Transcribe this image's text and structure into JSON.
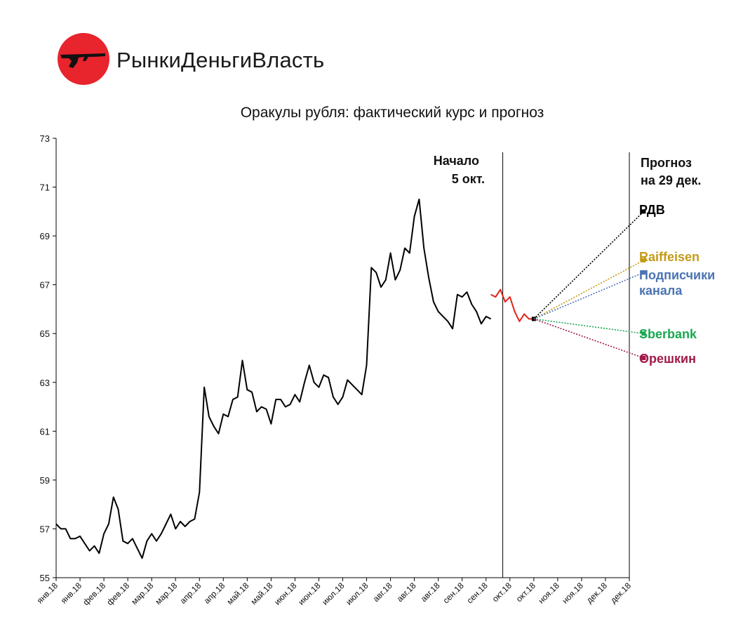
{
  "brand": {
    "name": "РынкиДеньгиВласть"
  },
  "chart_data": {
    "type": "line",
    "title": "Оракулы рубля: фактический курс и прогноз",
    "ylim": [
      55,
      73
    ],
    "y_ticks": [
      55,
      57,
      59,
      61,
      63,
      65,
      67,
      69,
      71,
      73
    ],
    "x_tick_labels": [
      "янв.18",
      "янв.18",
      "фев.18",
      "фев.18",
      "мар.18",
      "мар.18",
      "апр.18",
      "апр.18",
      "май.18",
      "май.18",
      "июн.18",
      "июн.18",
      "июл.18",
      "июл.18",
      "авг.18",
      "авг.18",
      "авг.18",
      "сен.18",
      "сен.18",
      "окт.18",
      "окт.18",
      "ноя.18",
      "ноя.18",
      "дек.18",
      "дек.18"
    ],
    "annotations": {
      "start_line": [
        "Начало",
        "5 окт."
      ],
      "forecast_line": [
        "Прогноз",
        "на 29 дек."
      ]
    },
    "series": [
      {
        "color": "#000000",
        "x_index": [
          0,
          0.2,
          0.4,
          0.6,
          0.8,
          1.0,
          1.2,
          1.4,
          1.6,
          1.8,
          2.0,
          2.2,
          2.4,
          2.6,
          2.8,
          3.0,
          3.2,
          3.4,
          3.6,
          3.8,
          4.0,
          4.2,
          4.4,
          4.6,
          4.8,
          5.0,
          5.2,
          5.4,
          5.6,
          5.8,
          6.0,
          6.2,
          6.4,
          6.6,
          6.8,
          7.0,
          7.2,
          7.4,
          7.6,
          7.8,
          8.0,
          8.2,
          8.4,
          8.6,
          8.8,
          9.0,
          9.2,
          9.4,
          9.6,
          9.8,
          10.0,
          10.2,
          10.4,
          10.6,
          10.8,
          11.0,
          11.2,
          11.4,
          11.6,
          11.8,
          12.0,
          12.2,
          12.4,
          12.6,
          12.8,
          13.0,
          13.2,
          13.4,
          13.6,
          13.8,
          14.0,
          14.2,
          14.4,
          14.6,
          14.8,
          15.0,
          15.2,
          15.4,
          15.6,
          15.8,
          16.0,
          16.2,
          16.4,
          16.6,
          16.8,
          17.0,
          17.2,
          17.4,
          17.6,
          17.8,
          18.0,
          18.2
        ],
        "values": [
          57.2,
          57.0,
          57.0,
          56.6,
          56.6,
          56.7,
          56.4,
          56.1,
          56.3,
          56.0,
          56.8,
          57.2,
          58.3,
          57.8,
          56.5,
          56.4,
          56.6,
          56.2,
          55.8,
          56.5,
          56.8,
          56.5,
          56.8,
          57.2,
          57.6,
          57.0,
          57.3,
          57.1,
          57.3,
          57.4,
          58.5,
          62.8,
          61.6,
          61.2,
          60.9,
          61.7,
          61.6,
          62.3,
          62.4,
          63.9,
          62.7,
          62.6,
          61.8,
          62.0,
          61.9,
          61.3,
          62.3,
          62.3,
          62.0,
          62.1,
          62.5,
          62.2,
          63.0,
          63.7,
          63.0,
          62.8,
          63.3,
          63.2,
          62.4,
          62.1,
          62.4,
          63.1,
          62.9,
          62.7,
          62.5,
          63.7,
          67.7,
          67.5,
          66.9,
          67.2,
          68.3,
          67.2,
          67.6,
          68.5,
          68.3,
          69.8,
          70.5,
          68.5,
          67.3,
          66.3,
          65.9,
          65.7,
          65.5,
          65.2,
          66.6,
          66.5,
          66.7,
          66.2,
          65.9,
          65.4,
          65.7,
          65.6
        ]
      },
      {
        "color": "#e2231a",
        "x_index": [
          18.2,
          18.4,
          18.6,
          18.8,
          19.0,
          19.2,
          19.4,
          19.6,
          19.8,
          20.0
        ],
        "values": [
          66.6,
          66.5,
          66.8,
          66.3,
          66.5,
          65.9,
          65.5,
          65.8,
          65.6,
          65.6
        ]
      }
    ],
    "forecasts": [
      {
        "name": "РДВ",
        "color": "#000000",
        "value": 70.0
      },
      {
        "name": "Raiffeisen",
        "color": "#c49a16",
        "value": 68.0
      },
      {
        "name": "Подписчики канала",
        "color": "#4b74b4",
        "value": 67.5
      },
      {
        "name": "Sberbank",
        "color": "#1aa851",
        "value": 65.0
      },
      {
        "name": "Орешкин",
        "color": "#a01a4a",
        "value": 64.0
      }
    ],
    "forecast_start": {
      "x_index": 20.0,
      "value": 65.6
    },
    "forecast_end_x_index": 24.6,
    "grid": false
  }
}
